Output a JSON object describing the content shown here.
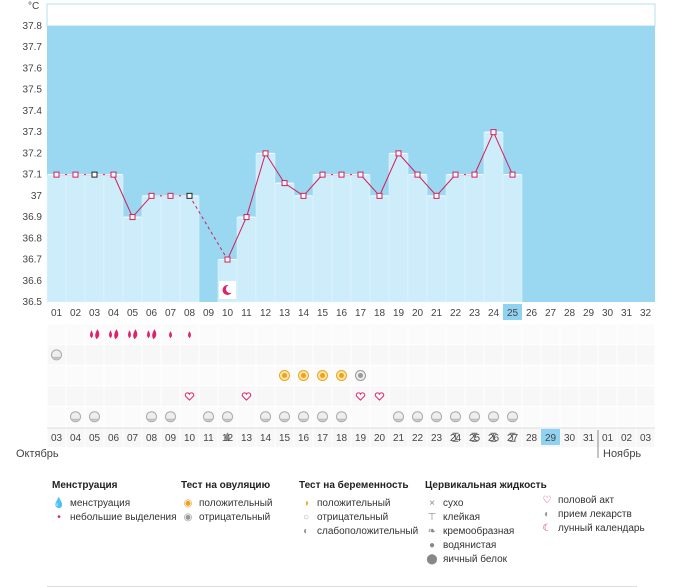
{
  "chart_data": {
    "type": "bar",
    "unit_label": "°C",
    "ylim": [
      36.5,
      37.8
    ],
    "yticks": [
      "36.5",
      "36.6",
      "36.7",
      "36.8",
      "36.9",
      "37",
      "37.1",
      "37.2",
      "37.3",
      "37.4",
      "37.5",
      "37.6",
      "37.7",
      "37.8"
    ],
    "cycle_days": [
      "01",
      "02",
      "03",
      "04",
      "05",
      "06",
      "07",
      "08",
      "09",
      "10",
      "11",
      "12",
      "13",
      "14",
      "15",
      "16",
      "17",
      "18",
      "19",
      "20",
      "21",
      "22",
      "23",
      "24",
      "25",
      "26",
      "27",
      "28",
      "29",
      "30",
      "31",
      "32"
    ],
    "current_day": "25",
    "temperature": [
      37.1,
      37.1,
      37.1,
      37.1,
      36.9,
      37.0,
      37.0,
      37.0,
      null,
      36.7,
      36.9,
      37.2,
      37.06,
      37.0,
      37.1,
      37.1,
      37.1,
      37.0,
      37.2,
      37.1,
      37.0,
      37.1,
      37.1,
      37.3,
      37.1,
      null,
      null,
      null,
      null,
      null,
      null,
      null
    ],
    "marker_black_days": [
      "03",
      "08"
    ],
    "gap_dashed_between": [
      "08",
      "10"
    ],
    "dates": [
      "03",
      "04",
      "05",
      "06",
      "07",
      "08",
      "09",
      "10",
      "11",
      "12",
      "13",
      "14",
      "15",
      "16",
      "17",
      "18",
      "19",
      "20",
      "21",
      "22",
      "23",
      "24",
      "25",
      "26",
      "27",
      "28",
      "29",
      "30",
      "31",
      "01",
      "02",
      "03"
    ],
    "red_dates": [
      "05",
      "06",
      "12",
      "13",
      "19",
      "20",
      "26",
      "02",
      "03"
    ],
    "month_left": "Октябрь",
    "month_right": "Ноябрь",
    "rows": {
      "menstruation": {
        "03": "heavy",
        "04": "heavy",
        "05": "heavy",
        "06": "heavy",
        "07": "light",
        "08": "light"
      },
      "row_01_only": {
        "01": "preg-neg"
      },
      "ovulation_row": {
        "13": "ov-pos",
        "14": "ov-pos",
        "15": "ov-pos",
        "16": "ov-pos",
        "17": "ov-neg"
      },
      "intercourse": {
        "08": "heart",
        "11": "heart",
        "17": "heart",
        "18": "heart"
      },
      "pills": {
        "02": "pill",
        "03": "pill",
        "06": "pill",
        "07": "pill",
        "09": "pill",
        "10": "pill",
        "12": "pill",
        "13": "pill",
        "14": "pill",
        "15": "pill",
        "16": "pill",
        "19": "pill",
        "20": "pill",
        "21": "pill",
        "22": "pill",
        "23": "pill",
        "24": "pill",
        "25": "pill"
      },
      "fluid": {
        "10": "drop",
        "22": "sticky",
        "23": "sticky",
        "24": "sticky",
        "25": "sticky"
      },
      "moon_day": "10"
    }
  },
  "legend": {
    "menstruation": {
      "title": "Менструация",
      "items": [
        "менструация",
        "небольшие выделения"
      ]
    },
    "ovulation": {
      "title": "Тест на овуляцию",
      "items": [
        "положительный",
        "отрицательный"
      ]
    },
    "pregnancy": {
      "title": "Тест на беременность",
      "items": [
        "положительный",
        "отрицательный",
        "слабоположительный"
      ]
    },
    "fluid": {
      "title": "Цервикальная жидкость",
      "items": [
        "сухо",
        "клейкая",
        "кремообразная",
        "водянистая",
        "яичный белок"
      ]
    },
    "other": {
      "items": [
        "половой акт",
        "прием лекарств",
        "лунный календарь"
      ]
    }
  },
  "colors": {
    "sky": "#9ad8f2",
    "bar": "#cdedfb",
    "line": "#d21e5a",
    "current": "#8fd3f0",
    "red": "#e0226a"
  }
}
